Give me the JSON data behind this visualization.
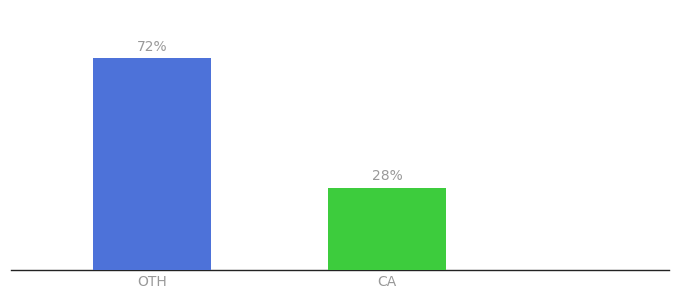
{
  "categories": [
    "OTH",
    "CA"
  ],
  "values": [
    72,
    28
  ],
  "bar_colors": [
    "#4d72d9",
    "#3dcc3d"
  ],
  "label_texts": [
    "72%",
    "28%"
  ],
  "label_color": "#999999",
  "label_fontsize": 10,
  "tick_fontsize": 10,
  "tick_color": "#999999",
  "background_color": "#ffffff",
  "ylim": [
    0,
    88
  ],
  "bar_width": 0.5,
  "spine_color": "#222222",
  "xlim": [
    -0.6,
    2.2
  ]
}
